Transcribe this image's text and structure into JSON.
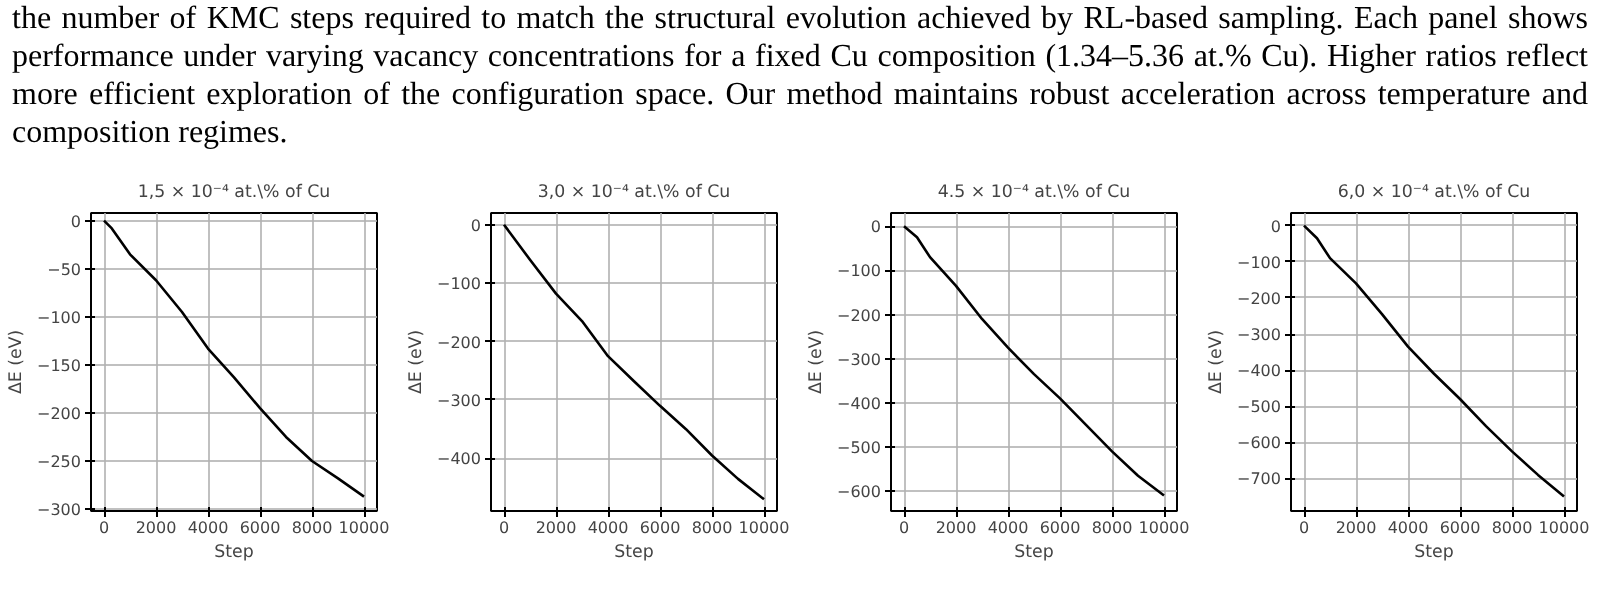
{
  "chart_data": [
    {
      "type": "line",
      "title": "1,5 × 10⁻⁴ at.\\% of Cu",
      "xlabel": "Step",
      "ylabel": "ΔE (eV)",
      "annotations": [
        "the number of KMC steps required to match the structural evolution achieved by RL-based sampling. Each panel shows performance under varying vacancy concentrations for a fixed Cu composition (1.34–5.36 at.% Cu). Higher ratios reflect more efficient exploration of the configuration space. Our method maintains robust acceleration across temperature and composition regimes."
      ],
      "grid": true,
      "series": [
        {
          "color": "#000000",
          "x": [
            0,
            300,
            1000,
            2000,
            3000,
            4000,
            5000,
            6000,
            7000,
            8000,
            9000,
            10000
          ],
          "values": [
            0,
            -8,
            -35,
            -62,
            -95,
            -133,
            -163,
            -195,
            -225,
            -250,
            -268,
            -287
          ]
        }
      ],
      "xlim": [
        -500,
        10500
      ],
      "xticks": [
        0,
        2000,
        4000,
        6000,
        8000,
        10000
      ],
      "ylim": [
        -302,
        8
      ],
      "yticks": [
        0,
        -50,
        -100,
        -150,
        -200,
        -250,
        -300
      ]
    },
    {
      "type": "line",
      "title": "3,0 × 10⁻⁴ at.\\% of Cu",
      "xlabel": "Step",
      "ylabel": "ΔE (eV)",
      "grid": true,
      "series": [
        {
          "color": "#000000",
          "x": [
            0,
            1000,
            2000,
            3000,
            4000,
            5000,
            6000,
            7000,
            8000,
            9000,
            10000
          ],
          "values": [
            0,
            -60,
            -118,
            -165,
            -225,
            -268,
            -310,
            -350,
            -395,
            -435,
            -470
          ]
        }
      ],
      "xlim": [
        -500,
        10500
      ],
      "xticks": [
        0,
        2000,
        4000,
        6000,
        8000,
        10000
      ],
      "ylim": [
        -490,
        20
      ],
      "yticks": [
        0,
        -100,
        -200,
        -300,
        -400
      ]
    },
    {
      "type": "line",
      "title": "4.5 × 10⁻⁴ at.\\% of Cu",
      "xlabel": "Step",
      "ylabel": "ΔE (eV)",
      "grid": true,
      "series": [
        {
          "color": "#000000",
          "x": [
            0,
            500,
            1000,
            2000,
            3000,
            4000,
            5000,
            6000,
            7000,
            8000,
            9000,
            10000
          ],
          "values": [
            0,
            -25,
            -70,
            -135,
            -210,
            -275,
            -335,
            -390,
            -450,
            -510,
            -565,
            -610
          ]
        }
      ],
      "xlim": [
        -500,
        10500
      ],
      "xticks": [
        0,
        2000,
        4000,
        6000,
        8000,
        10000
      ],
      "ylim": [
        -645,
        30
      ],
      "yticks": [
        0,
        -100,
        -200,
        -300,
        -400,
        -500,
        -600
      ]
    },
    {
      "type": "line",
      "title": "6,0 × 10⁻⁴ at.\\% of Cu",
      "xlabel": "Step",
      "ylabel": "ΔE (eV)",
      "grid": true,
      "series": [
        {
          "color": "#000000",
          "x": [
            0,
            500,
            1000,
            2000,
            3000,
            4000,
            5000,
            6000,
            7000,
            8000,
            9000,
            10000
          ],
          "values": [
            0,
            -35,
            -90,
            -160,
            -245,
            -335,
            -410,
            -480,
            -555,
            -625,
            -690,
            -750
          ]
        }
      ],
      "xlim": [
        -500,
        10500
      ],
      "xticks": [
        0,
        2000,
        4000,
        6000,
        8000,
        10000
      ],
      "ylim": [
        -790,
        35
      ],
      "yticks": [
        0,
        -100,
        -200,
        -300,
        -400,
        -500,
        -600,
        -700
      ]
    }
  ]
}
